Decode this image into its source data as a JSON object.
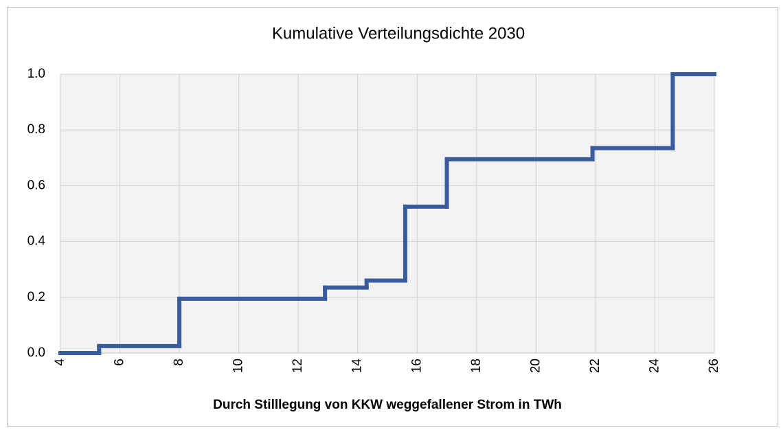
{
  "chart_data": {
    "type": "step",
    "title": "Kumulative Verteilungsdichte 2030",
    "x_label": "Durch Stilllegung von KKW weggefallener Strom  in TWh",
    "x": [
      4,
      5.3,
      8,
      12.9,
      14.3,
      15.6,
      17,
      21.9,
      24.6
    ],
    "values": [
      0,
      0.025,
      0.195,
      0.235,
      0.26,
      0.525,
      0.695,
      0.735,
      1.0
    ],
    "color": "#3a5c9c",
    "xlim": [
      4,
      26
    ],
    "xticks": [
      4,
      6,
      8,
      10,
      12,
      14,
      16,
      18,
      20,
      22,
      24,
      26
    ],
    "ylim": [
      0,
      1
    ],
    "yticks": [
      {
        "value": 0,
        "label": "0.0"
      },
      {
        "value": 0.2,
        "label": "0.2"
      },
      {
        "value": 0.4,
        "label": "0.4"
      },
      {
        "value": 0.6,
        "label": "0.6"
      },
      {
        "value": 0.8,
        "label": "0.8"
      },
      {
        "value": 1,
        "label": "1.0"
      }
    ],
    "grid": true
  }
}
